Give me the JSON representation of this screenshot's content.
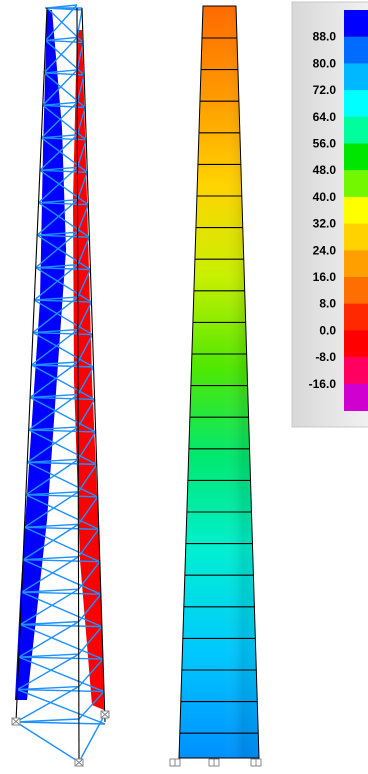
{
  "legend": {
    "labels": [
      "88.0",
      "80.0",
      "72.0",
      "64.0",
      "56.0",
      "48.0",
      "40.0",
      "32.0",
      "24.0",
      "16.0",
      "8.0",
      "0.0",
      "-8.0",
      "-16.0"
    ],
    "colors": [
      "#0000ff",
      "#006bff",
      "#00b8ff",
      "#00ffff",
      "#00ff9c",
      "#00e600",
      "#73f700",
      "#ffff00",
      "#ffd200",
      "#ffa000",
      "#ff6e00",
      "#ff2800",
      "#ff0000",
      "#ff0060",
      "#d000d0"
    ]
  },
  "colors": {
    "frame_members": "#1e90ff",
    "chord_negative": "#0000ff",
    "chord_positive": "#ff0000",
    "diaphragm_lines": "#000000",
    "support_symbol": "#888888"
  },
  "icons": {
    "supports": "pinned-support-icon"
  }
}
